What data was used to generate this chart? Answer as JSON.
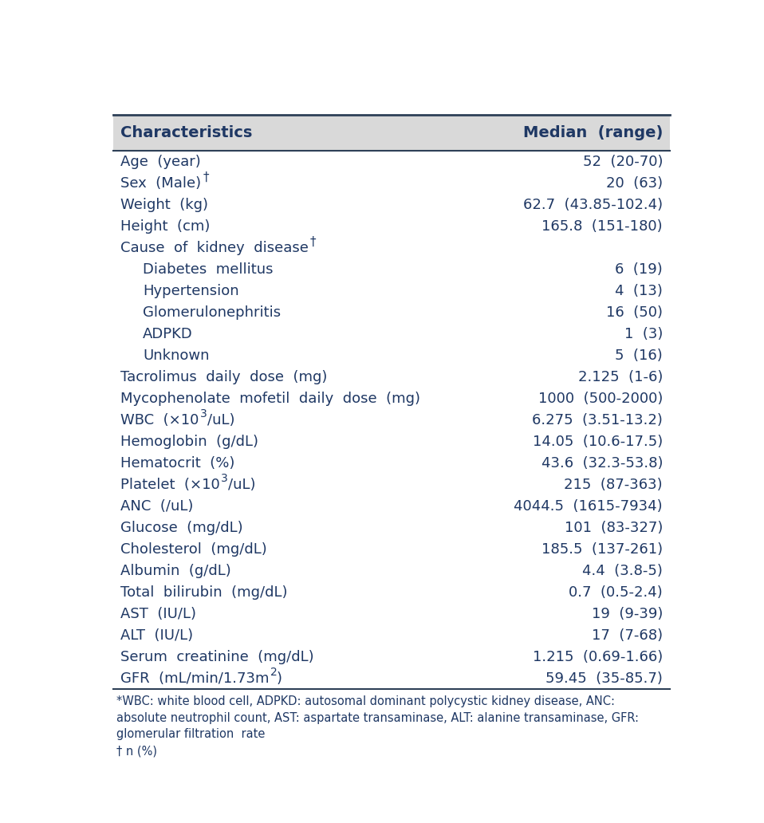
{
  "header": [
    "Characteristics",
    "Median  (range)"
  ],
  "rows": [
    {
      "label": "Age  (year)",
      "value": "52  (20-70)",
      "indent": 0,
      "label_special": null
    },
    {
      "label": "Sex  (Male)",
      "value": "20  (63)",
      "indent": 0,
      "label_special": "dagger_after"
    },
    {
      "label": "Weight  (kg)",
      "value": "62.7  (43.85-102.4)",
      "indent": 0,
      "label_special": null
    },
    {
      "label": "Height  (cm)",
      "value": "165.8  (151-180)",
      "indent": 0,
      "label_special": null
    },
    {
      "label": "Cause  of  kidney  disease",
      "value": "",
      "indent": 0,
      "label_special": "dagger_after"
    },
    {
      "label": "Diabetes  mellitus",
      "value": "6  (19)",
      "indent": 1,
      "label_special": null
    },
    {
      "label": "Hypertension",
      "value": "4  (13)",
      "indent": 1,
      "label_special": null
    },
    {
      "label": "Glomerulonephritis",
      "value": "16  (50)",
      "indent": 1,
      "label_special": null
    },
    {
      "label": "ADPKD",
      "value": "1  (3)",
      "indent": 1,
      "label_special": null
    },
    {
      "label": "Unknown",
      "value": "5  (16)",
      "indent": 1,
      "label_special": null
    },
    {
      "label": "Tacrolimus  daily  dose  (mg)",
      "value": "2.125  (1-6)",
      "indent": 0,
      "label_special": null
    },
    {
      "label": "Mycophenolate  mofetil  daily  dose  (mg)",
      "value": "1000  (500-2000)",
      "indent": 0,
      "label_special": null
    },
    {
      "label": "WBC  (×10",
      "value": "6.275  (3.51-13.2)",
      "indent": 0,
      "label_special": "wbc"
    },
    {
      "label": "Hemoglobin  (g/dL)",
      "value": "14.05  (10.6-17.5)",
      "indent": 0,
      "label_special": null
    },
    {
      "label": "Hematocrit  (%)",
      "value": "43.6  (32.3-53.8)",
      "indent": 0,
      "label_special": null
    },
    {
      "label": "Platelet  (×10",
      "value": "215  (87-363)",
      "indent": 0,
      "label_special": "platelet"
    },
    {
      "label": "ANC  (/uL)",
      "value": "4044.5  (1615-7934)",
      "indent": 0,
      "label_special": null
    },
    {
      "label": "Glucose  (mg/dL)",
      "value": "101  (83-327)",
      "indent": 0,
      "label_special": null
    },
    {
      "label": "Cholesterol  (mg/dL)",
      "value": "185.5  (137-261)",
      "indent": 0,
      "label_special": null
    },
    {
      "label": "Albumin  (g/dL)",
      "value": "4.4  (3.8-5)",
      "indent": 0,
      "label_special": null
    },
    {
      "label": "Total  bilirubin  (mg/dL)",
      "value": "0.7  (0.5-2.4)",
      "indent": 0,
      "label_special": null
    },
    {
      "label": "AST  (IU/L)",
      "value": "19  (9-39)",
      "indent": 0,
      "label_special": null
    },
    {
      "label": "ALT  (IU/L)",
      "value": "17  (7-68)",
      "indent": 0,
      "label_special": null
    },
    {
      "label": "Serum  creatinine  (mg/dL)",
      "value": "1.215  (0.69-1.66)",
      "indent": 0,
      "label_special": null
    },
    {
      "label": "GFR  (mL/min/1.73m",
      "value": "59.45  (35-85.7)",
      "indent": 0,
      "label_special": "gfr"
    }
  ],
  "footnote_line1": "*WBC: white blood cell, ADPKD: autosomal dominant polycystic kidney disease, ANC:",
  "footnote_line2": "absolute neutrophil count, AST: aspartate transaminase, ALT: alanine transaminase, GFR:",
  "footnote_line3": "glomerular filtration  rate",
  "footnote_line4": "† n (%)",
  "header_bg": "#d9d9d9",
  "text_color": "#1f3864",
  "line_color": "#2e4057",
  "font_size": 13,
  "header_font_size": 14,
  "footnote_font_size": 10.5
}
